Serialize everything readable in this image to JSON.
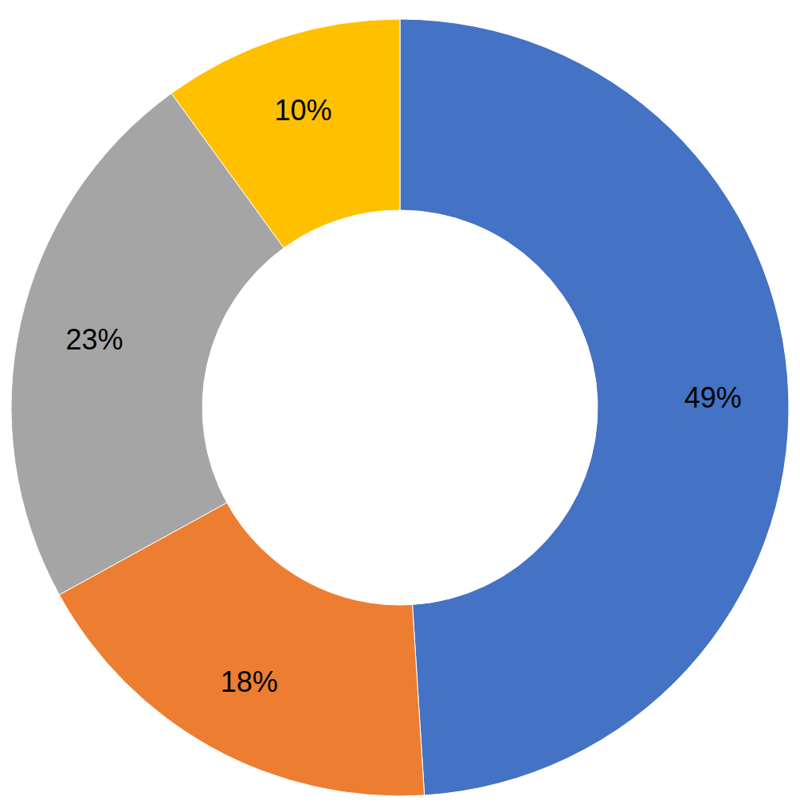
{
  "chart_data": {
    "type": "donut",
    "values": [
      49,
      18,
      23,
      10
    ],
    "value_labels": [
      "49%",
      "18%",
      "23%",
      "10%"
    ],
    "colors": [
      "#4472c4",
      "#ed7d31",
      "#a5a5a5",
      "#ffc000"
    ],
    "data_labels": true
  }
}
